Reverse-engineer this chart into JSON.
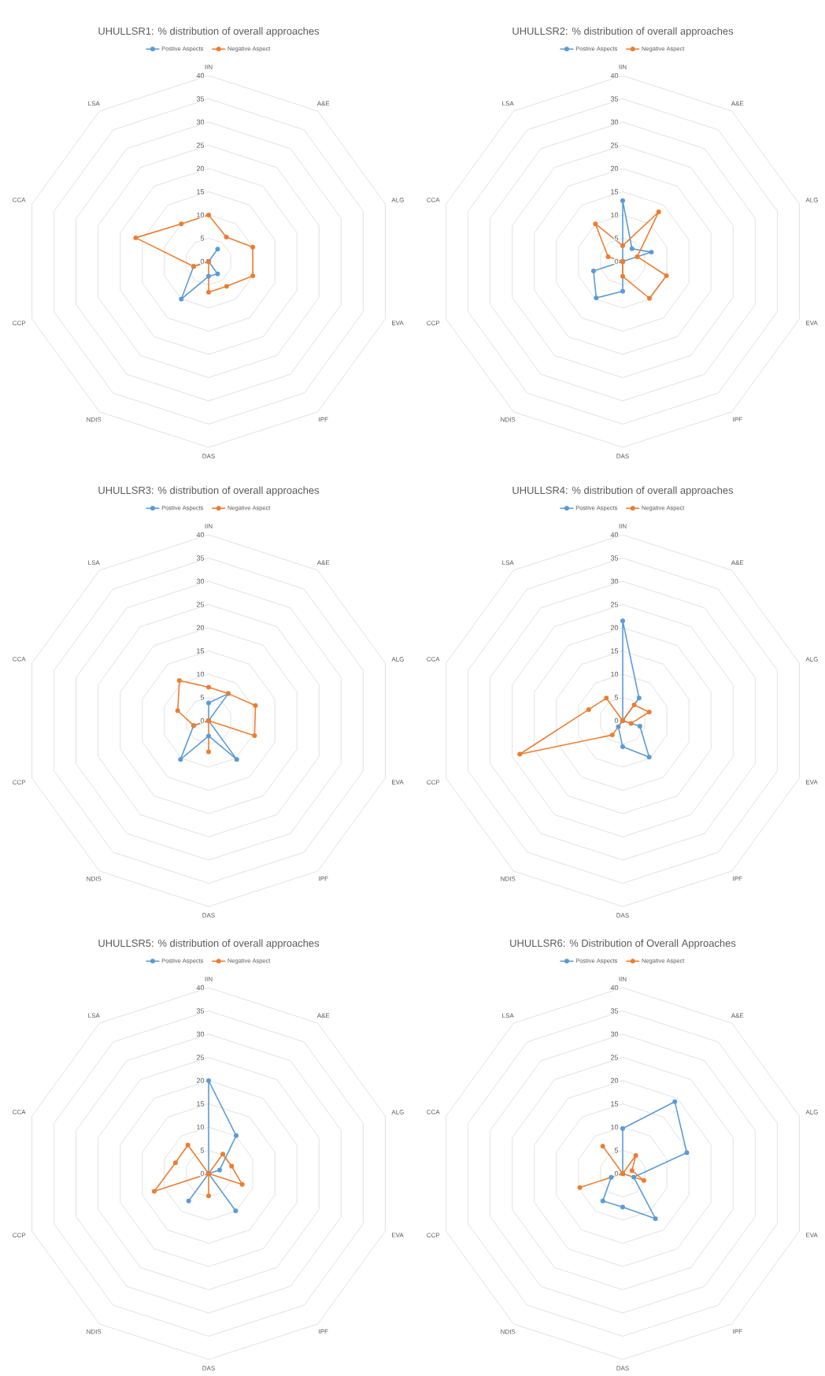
{
  "chart_data": [
    {
      "type": "radar",
      "title": "UHULLSR1: % distribution of overall approaches",
      "categories": [
        "IIN",
        "A&E",
        "ALG",
        "EVA",
        "IPF",
        "DAS",
        "NDIS",
        "CCP",
        "CCA",
        "LSA"
      ],
      "ylim": [
        0,
        40
      ],
      "yticks": [
        0,
        5,
        10,
        15,
        20,
        25,
        30,
        35,
        40
      ],
      "grid": true,
      "legend": "top",
      "marker": "circle",
      "series": [
        {
          "name": "Postive Aspects",
          "color": "#5b9bd5",
          "values": [
            0,
            3.3,
            0,
            0,
            3.3,
            3.2,
            10,
            3.4,
            0,
            0
          ]
        },
        {
          "name": "Negative Aspect",
          "color": "#ed7d31",
          "values": [
            10,
            6.5,
            10,
            10,
            6.6,
            6.6,
            0,
            3.4,
            16.5,
            10
          ]
        }
      ]
    },
    {
      "type": "radar",
      "title": "UHULLSR2: % distribution of overall approaches",
      "categories": [
        "IIN",
        "A&E",
        "ALG",
        "EVA",
        "IPF",
        "DAS",
        "NDIS",
        "CCP",
        "CCA",
        "LSA"
      ],
      "ylim": [
        0,
        40
      ],
      "yticks": [
        0,
        5,
        10,
        15,
        20,
        25,
        30,
        35,
        40
      ],
      "grid": true,
      "legend": "top",
      "marker": "circle",
      "series": [
        {
          "name": "Postive Aspects",
          "color": "#5b9bd5",
          "values": [
            13.1,
            3.4,
            6.5,
            0,
            0,
            6.4,
            9.7,
            6.6,
            0,
            0
          ]
        },
        {
          "name": "Negative Aspect",
          "color": "#ed7d31",
          "values": [
            3.4,
            13.2,
            3.3,
            9.9,
            9.8,
            3.2,
            0,
            0,
            3.3,
            10
          ]
        }
      ]
    },
    {
      "type": "radar",
      "title": "UHULLSR3: % distribution of overall approaches",
      "categories": [
        "IIN",
        "A&E",
        "ALG",
        "EVA",
        "IPF",
        "DAS",
        "NDIS",
        "CCP",
        "CCA",
        "LSA"
      ],
      "ylim": [
        0,
        40
      ],
      "yticks": [
        0,
        5,
        10,
        15,
        20,
        25,
        30,
        35,
        40
      ],
      "grid": true,
      "legend": "top",
      "marker": "circle",
      "series": [
        {
          "name": "Postive Aspects",
          "color": "#5b9bd5",
          "values": [
            3.8,
            7.2,
            0,
            0,
            10.3,
            3.3,
            10.3,
            3.4,
            0,
            0
          ]
        },
        {
          "name": "Negative Aspect",
          "color": "#ed7d31",
          "values": [
            7.2,
            7.2,
            10.6,
            10.4,
            0,
            6.7,
            0,
            3.4,
            7.0,
            10.7
          ]
        }
      ]
    },
    {
      "type": "radar",
      "title": "UHULLSR4: % distribution of overall approaches",
      "categories": [
        "IIN",
        "A&E",
        "ALG",
        "EVA",
        "IPF",
        "DAS",
        "NDIS",
        "CCP",
        "CCA",
        "LSA"
      ],
      "ylim": [
        0,
        40
      ],
      "yticks": [
        0,
        5,
        10,
        15,
        20,
        25,
        30,
        35,
        40
      ],
      "grid": true,
      "legend": "top",
      "marker": "circle",
      "series": [
        {
          "name": "Postive Aspects",
          "color": "#5b9bd5",
          "values": [
            21.5,
            6.0,
            0,
            3.9,
            9.7,
            5.6,
            1.6,
            0,
            0,
            0
          ]
        },
        {
          "name": "Negative Aspect",
          "color": "#ed7d31",
          "values": [
            0,
            4.2,
            6.0,
            1.9,
            0,
            0,
            3.8,
            23.3,
            7.7,
            6.0
          ]
        }
      ]
    },
    {
      "type": "radar",
      "title": "UHULLSR5: % distribution of overall approaches",
      "categories": [
        "IIN",
        "A&E",
        "ALG",
        "EVA",
        "IPF",
        "DAS",
        "NDIS",
        "CCP",
        "CCA",
        "LSA"
      ],
      "ylim": [
        0,
        40
      ],
      "yticks": [
        0,
        5,
        10,
        15,
        20,
        25,
        30,
        35,
        40
      ],
      "grid": true,
      "legend": "top",
      "marker": "circle",
      "series": [
        {
          "name": "Postive Aspects",
          "color": "#5b9bd5",
          "values": [
            20,
            10.1,
            2.5,
            0,
            9.9,
            0,
            7.3,
            0,
            0,
            0
          ]
        },
        {
          "name": "Negative Aspect",
          "color": "#ed7d31",
          "values": [
            0,
            5.2,
            5.2,
            7.6,
            0,
            4.8,
            0,
            12.3,
            7.5,
            7.6
          ]
        }
      ]
    },
    {
      "type": "radar",
      "title": "UHULLSR6: % Distribution of Overall Approaches",
      "categories": [
        "IIN",
        "A&E",
        "ALG",
        "EVA",
        "IPF",
        "DAS",
        "NDIS",
        "CCP",
        "CCA",
        "LSA"
      ],
      "ylim": [
        0,
        40
      ],
      "yticks": [
        0,
        5,
        10,
        15,
        20,
        25,
        30,
        35,
        40
      ],
      "grid": true,
      "legend": "top",
      "marker": "circle",
      "series": [
        {
          "name": "Postive Aspects",
          "color": "#5b9bd5",
          "values": [
            9.7,
            19.1,
            14.5,
            2.5,
            12.0,
            7.2,
            7.3,
            2.6,
            0,
            0
          ]
        },
        {
          "name": "Negative Aspect",
          "color": "#ed7d31",
          "values": [
            0,
            4.8,
            2.1,
            4.8,
            0,
            0,
            0,
            9.7,
            0,
            7.3
          ]
        }
      ]
    }
  ]
}
